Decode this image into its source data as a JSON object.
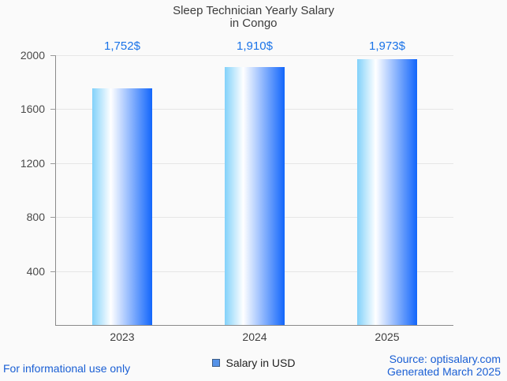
{
  "title": {
    "line1": "Sleep Technician Yearly Salary",
    "line2": "in Congo"
  },
  "chart_data": {
    "type": "bar",
    "title": "Sleep Technician Yearly Salary in Congo",
    "categories": [
      "2023",
      "2024",
      "2025"
    ],
    "series": [
      {
        "name": "Salary in USD",
        "values": [
          1752,
          1910,
          1973
        ]
      }
    ],
    "value_labels": [
      "1,752$",
      "1,910$",
      "1,973$"
    ],
    "xlabel": "",
    "ylabel": "",
    "ylim": [
      0,
      2000
    ],
    "yticks": [
      400,
      800,
      1200,
      1600,
      2000
    ],
    "grid": true,
    "legend_position": "bottom",
    "colors": {
      "bar_gradient_left": "#82d1fa",
      "bar_gradient_highlight": "#ffffff",
      "bar_gradient_right": "#1266fb",
      "value_label": "#1a73e8",
      "gridline": "#e6e6e6",
      "axis": "#8a8a8a"
    }
  },
  "legend": {
    "label": "Salary in USD",
    "marker_fill": "#5592e8",
    "marker_border": "#3d5c85"
  },
  "footer": {
    "left_text": "For informational use only",
    "source_text": "Source: optisalary.com",
    "generated_text": "Generated March 2025",
    "text_color": "#1a5fd4"
  }
}
